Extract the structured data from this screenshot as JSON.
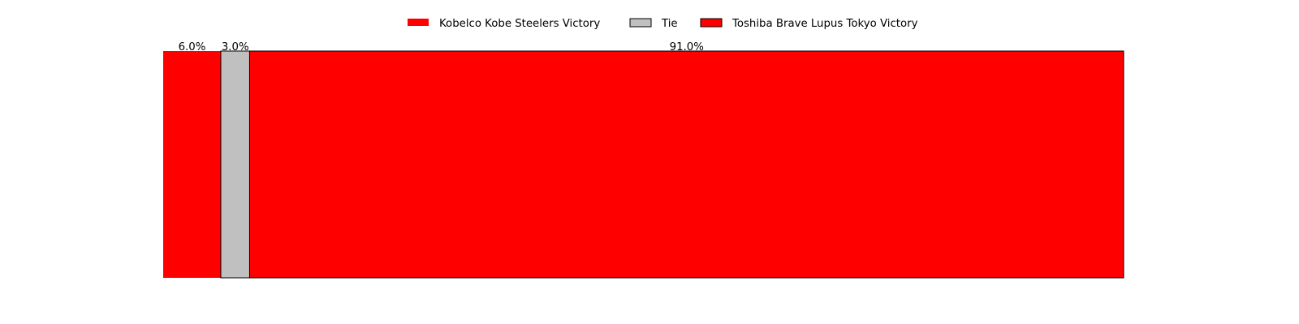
{
  "chart_data": {
    "type": "bar",
    "orientation": "horizontal",
    "stacked": true,
    "title": "",
    "xlabel": "",
    "ylabel": "",
    "axes_visible": false,
    "grid": false,
    "legend_position": "top-center",
    "xlim": [
      0,
      100
    ],
    "categories": [
      ""
    ],
    "series": [
      {
        "name": "Kobelco Kobe Steelers Victory",
        "values": [
          6.0
        ],
        "label": "6.0%",
        "color": "#ff0000",
        "edgecolor": "none"
      },
      {
        "name": "Tie",
        "values": [
          3.0
        ],
        "label": "3.0%",
        "color": "#c0c0c0",
        "edgecolor": "#000000"
      },
      {
        "name": "Toshiba Brave Lupus Tokyo Victory",
        "values": [
          91.0
        ],
        "label": "91.0%",
        "color": "#ff0000",
        "edgecolor": "#000000"
      }
    ]
  }
}
